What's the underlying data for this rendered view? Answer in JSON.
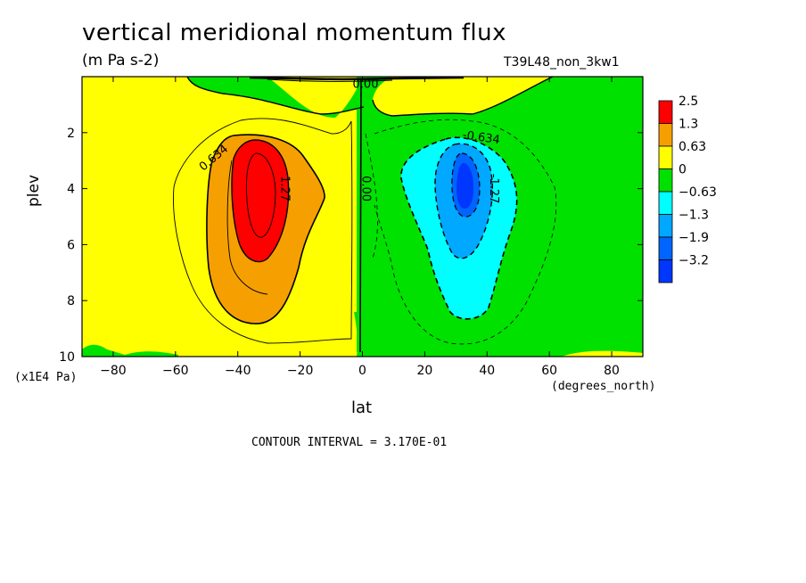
{
  "chart_data": {
    "type": "heatmap",
    "title": "vertical meridional momentum flux",
    "units_label": "(m Pa s-2)",
    "run_id": "T39L48_non_3kw1",
    "xlabel": "lat",
    "ylabel": "plev",
    "x_units": "(degrees_north)",
    "y_units": "(x1E4 Pa)",
    "xlim": [
      -90,
      90
    ],
    "ylim": [
      10,
      0
    ],
    "x_ticks": [
      -80,
      -60,
      -40,
      -20,
      0,
      20,
      40,
      60,
      80
    ],
    "y_ticks": [
      2,
      4,
      6,
      8,
      10
    ],
    "contour_interval_text": "CONTOUR INTERVAL = 3.170E-01",
    "grid": false,
    "legend_position": "right",
    "legend": {
      "labels": [
        "2.5",
        "1.3",
        "0.63",
        "0",
        "-0.63",
        "-1.3",
        "-1.9",
        "-3.2"
      ],
      "colors": [
        "#ff0000",
        "#f5a000",
        "#ffff00",
        "#00e100",
        "#00ffff",
        "#00a8ff",
        "#0064ff",
        "#0037ff"
      ]
    },
    "features": [
      {
        "label": "positive maximum",
        "lat": -32,
        "plev": 4.0,
        "peak_value": 2.5
      },
      {
        "label": "negative minimum",
        "lat": 32,
        "plev": 4.0,
        "peak_value": -2.5
      }
    ],
    "contour_labels": [
      {
        "text": "0.634",
        "lat": -47,
        "plev": 3.0
      },
      {
        "text": "1.27",
        "lat": -26,
        "plev": 4.0
      },
      {
        "text": "0.00",
        "lat": 1,
        "plev": 0.4
      },
      {
        "text": "0.00",
        "lat": 0,
        "plev": 4.0
      },
      {
        "text": "-0.634",
        "lat": 38,
        "plev": 2.3
      },
      {
        "text": "-1.27",
        "lat": 41,
        "plev": 4.0
      }
    ]
  }
}
